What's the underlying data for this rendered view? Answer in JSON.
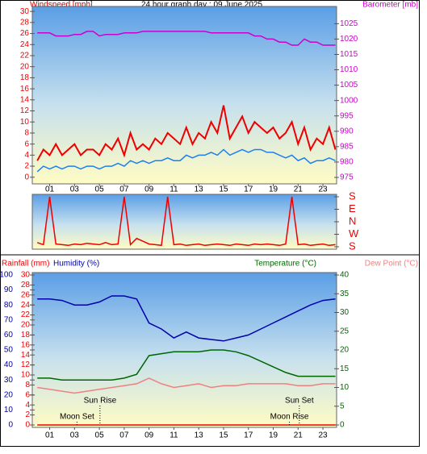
{
  "chart_data": [
    {
      "type": "line",
      "title": "24 hour graph day : 09 June 2025",
      "y_label": "Windspeed [mph]",
      "y2_label": "Barometer [mb]",
      "x": [
        0,
        0.5,
        1,
        1.5,
        2,
        2.5,
        3,
        3.5,
        4,
        4.5,
        5,
        5.5,
        6,
        6.5,
        7,
        7.5,
        8,
        8.5,
        9,
        9.5,
        10,
        10.5,
        11,
        11.5,
        12,
        12.5,
        13,
        13.5,
        14,
        14.5,
        15,
        15.5,
        16,
        16.5,
        17,
        17.5,
        18,
        18.5,
        19,
        19.5,
        20,
        20.5,
        21,
        21.5,
        22,
        22.5,
        23,
        23.5,
        24
      ],
      "xlim": [
        -0.4,
        24.1
      ],
      "xticks": [
        {
          "value": 1,
          "label": "01"
        },
        {
          "value": 3,
          "label": "03"
        },
        {
          "value": 5,
          "label": "05"
        },
        {
          "value": 7,
          "label": "07"
        },
        {
          "value": 9,
          "label": "09"
        },
        {
          "value": 11,
          "label": "11"
        },
        13,
        15,
        17,
        19,
        21,
        23
      ],
      "ylim": [
        -1.2,
        30.9
      ],
      "yticks": [
        0,
        2,
        4,
        6,
        8,
        10,
        12,
        14,
        16,
        18,
        20,
        22,
        24,
        26,
        28,
        30
      ],
      "y2lim": [
        972.9,
        1030.6
      ],
      "y2ticks": [
        975,
        980,
        985,
        990,
        995,
        1000,
        1005,
        1010,
        1015,
        1020,
        1025
      ],
      "series": [
        {
          "color": "#ee0000",
          "values": [
            3,
            5,
            4,
            6,
            4,
            5,
            6,
            4,
            5,
            5,
            4,
            6,
            5,
            7,
            4,
            8,
            5,
            6,
            5,
            7,
            6,
            8,
            7,
            6,
            9,
            6,
            8,
            7,
            10,
            8,
            13,
            7,
            9,
            11,
            8,
            10,
            9,
            8,
            9,
            7,
            8,
            10,
            6,
            9,
            5,
            7,
            6,
            9,
            5
          ]
        },
        {
          "color": "#1e7ff0",
          "values": [
            1,
            2,
            1.5,
            2,
            1.5,
            2,
            2,
            1.5,
            2,
            2,
            1.5,
            2,
            2,
            2.5,
            2,
            3,
            2.5,
            3,
            2.5,
            3,
            3,
            3.5,
            3,
            3,
            4,
            3.5,
            4,
            4,
            4.5,
            4,
            5,
            4,
            4.5,
            5,
            4.5,
            5,
            5,
            4.5,
            4.5,
            4,
            3.5,
            4,
            3,
            3.5,
            2.5,
            3,
            3,
            3.5,
            3
          ]
        },
        {
          "color": "#cc00cc",
          "axis": "y2",
          "values": [
            1022,
            1022,
            1022,
            1021,
            1021,
            1021,
            1021.5,
            1021.5,
            1022.5,
            1022.5,
            1021,
            1021.5,
            1021.5,
            1021.5,
            1022,
            1022,
            1022,
            1022.5,
            1022.5,
            1022.5,
            1022.5,
            1022.5,
            1022.5,
            1022.5,
            1022.5,
            1022.5,
            1022.5,
            1022.5,
            1022,
            1022,
            1022,
            1022,
            1022,
            1022,
            1022,
            1021,
            1021,
            1020,
            1020,
            1019,
            1019,
            1018,
            1018,
            1020,
            1019,
            1019,
            1018,
            1018,
            1018
          ]
        }
      ]
    },
    {
      "type": "line",
      "x": [
        0,
        0.5,
        1,
        1.5,
        2,
        2.5,
        3,
        3.5,
        4,
        4.5,
        5,
        5.5,
        6,
        6.5,
        7,
        7.5,
        8,
        8.5,
        9,
        9.5,
        10,
        10.5,
        11,
        11.5,
        12,
        12.5,
        13,
        13.5,
        14,
        14.5,
        15,
        15.5,
        16,
        16.5,
        17,
        17.5,
        18,
        18.5,
        19,
        19.5,
        20,
        20.5,
        21,
        21.5,
        22,
        22.5,
        23,
        23.5,
        24
      ],
      "xlim": [
        -0.4,
        24.1
      ],
      "ylim": [
        -180,
        180
      ],
      "yticks": [
        {
          "value": 180,
          "label": "S"
        },
        {
          "value": 90,
          "label": "E"
        },
        {
          "value": 0,
          "label": "N"
        },
        {
          "value": -90,
          "label": "W"
        },
        {
          "value": -180,
          "label": "S"
        }
      ],
      "series": [
        {
          "color": "#ee0000",
          "values": [
            -150,
            -165,
            180,
            -160,
            -165,
            -170,
            -160,
            -165,
            -155,
            -160,
            -165,
            -150,
            -165,
            -160,
            180,
            -165,
            -120,
            -140,
            -160,
            -165,
            -170,
            180,
            -165,
            -160,
            -170,
            -165,
            -160,
            -170,
            -165,
            -160,
            -165,
            -170,
            -160,
            -165,
            -170,
            -160,
            -165,
            -160,
            -165,
            -170,
            -160,
            180,
            -165,
            -160,
            -170,
            -165,
            -160,
            -170,
            -165
          ]
        }
      ]
    },
    {
      "type": "line",
      "x": [
        0,
        1,
        2,
        3,
        4,
        5,
        6,
        7,
        8,
        9,
        10,
        11,
        12,
        13,
        14,
        15,
        16,
        17,
        18,
        19,
        20,
        21,
        22,
        23,
        24
      ],
      "xlim": [
        -0.4,
        24.1
      ],
      "xticks": [
        {
          "value": 1,
          "label": "01"
        },
        {
          "value": 3,
          "label": "03"
        },
        {
          "value": 5,
          "label": "05"
        },
        {
          "value": 7,
          "label": "07"
        },
        {
          "value": 9,
          "label": "09"
        },
        {
          "value": 11,
          "label": "11"
        },
        13,
        15,
        17,
        19,
        21,
        23
      ],
      "ylim": [
        0,
        30
      ],
      "yticks": [
        0,
        2,
        4,
        6,
        8,
        10,
        12,
        14,
        16,
        18,
        20,
        22,
        24,
        26,
        28,
        30
      ],
      "y2lim": [
        0,
        40
      ],
      "y2ticks": [
        0,
        5,
        10,
        15,
        20,
        25,
        30,
        35,
        40
      ],
      "y3lim": [
        0,
        100
      ],
      "y3ticks": [
        0,
        10,
        20,
        30,
        40,
        50,
        60,
        70,
        80,
        90,
        100
      ],
      "series": [
        {
          "name": "Rainfall (mm)",
          "color": "#ee0000",
          "values": [
            0,
            0,
            0,
            0,
            0,
            0,
            0,
            0,
            0,
            0,
            0,
            0,
            0,
            0,
            0,
            0,
            0,
            0,
            0,
            0,
            0,
            0,
            0,
            0,
            0
          ]
        },
        {
          "name": "Humidity (%)",
          "color": "#0000aa",
          "axis": "y3",
          "values": [
            84,
            84,
            83,
            80,
            80,
            82,
            86,
            86,
            84,
            68,
            64,
            58,
            62,
            58,
            57,
            56,
            58,
            60,
            64,
            68,
            72,
            76,
            80,
            83,
            84
          ]
        },
        {
          "name": "Temperature (°C)",
          "color": "#006600",
          "axis": "y2",
          "values": [
            12.5,
            12.5,
            12,
            12,
            12,
            12,
            12,
            12.5,
            13.5,
            18.5,
            19,
            19.5,
            19.5,
            19.5,
            20,
            20,
            19.5,
            18.5,
            17,
            15.5,
            14,
            13,
            13,
            13,
            13
          ]
        },
        {
          "name": "Dew Point (°C)",
          "color": "#f08080",
          "axis": "y2",
          "values": [
            10,
            9.5,
            9,
            8.5,
            9,
            9.5,
            10,
            10.5,
            11,
            12.5,
            11,
            10,
            10.5,
            11,
            10,
            10.5,
            10.5,
            11,
            11,
            11,
            11,
            10.5,
            10.5,
            11,
            11
          ]
        }
      ],
      "annotations": [
        {
          "text": "Sun Rise",
          "x": 5.05
        },
        {
          "text": "Sun Set",
          "x": 21.1
        },
        {
          "text": "Moon Set",
          "x": 3.2
        },
        {
          "text": "Moon Rise",
          "x": 20.3
        }
      ]
    }
  ]
}
